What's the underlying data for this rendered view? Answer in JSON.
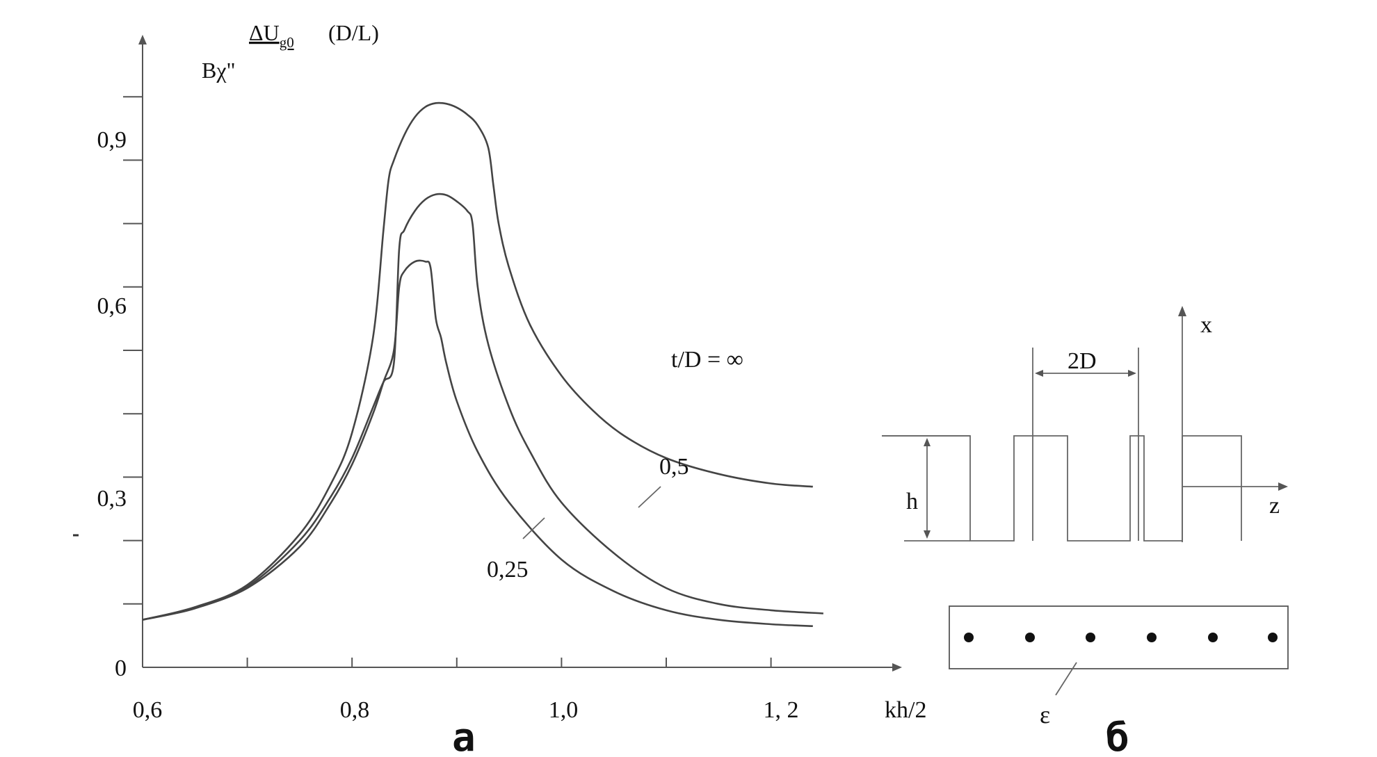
{
  "chart_data": {
    "type": "line",
    "ylabel_prefix": "Bχ\"",
    "ylabel_main": "ΔU",
    "ylabel_sub": "g0",
    "ylabel_suffix": "(D/L)",
    "xlabel": "kh/2",
    "x_ticks": [
      "0,6",
      "0,8",
      "1,0",
      "1, 2"
    ],
    "y_ticks": [
      "0",
      "0,3",
      "0,6",
      "0,9"
    ],
    "xlim": [
      0.6,
      1.3
    ],
    "ylim": [
      0,
      0.97
    ],
    "series": [
      {
        "name": "t/D = ∞",
        "x": [
          0.6,
          0.65,
          0.7,
          0.75,
          0.78,
          0.8,
          0.82,
          0.83,
          0.835,
          0.84,
          0.85,
          0.86,
          0.87,
          0.88,
          0.89,
          0.9,
          0.91,
          0.92,
          0.93,
          0.935,
          0.94,
          0.95,
          0.97,
          1.0,
          1.03,
          1.06,
          1.1,
          1.15,
          1.2,
          1.24
        ],
        "y": [
          0.075,
          0.095,
          0.13,
          0.21,
          0.29,
          0.37,
          0.52,
          0.69,
          0.77,
          0.8,
          0.84,
          0.868,
          0.884,
          0.89,
          0.889,
          0.883,
          0.872,
          0.855,
          0.82,
          0.76,
          0.7,
          0.63,
          0.54,
          0.46,
          0.405,
          0.365,
          0.33,
          0.305,
          0.29,
          0.285
        ]
      },
      {
        "name": "0,5",
        "x": [
          0.6,
          0.65,
          0.7,
          0.75,
          0.78,
          0.8,
          0.82,
          0.83,
          0.84,
          0.845,
          0.85,
          0.86,
          0.87,
          0.88,
          0.89,
          0.9,
          0.91,
          0.915,
          0.92,
          0.93,
          0.95,
          0.97,
          1.0,
          1.05,
          1.1,
          1.15,
          1.2,
          1.25
        ],
        "y": [
          0.075,
          0.093,
          0.127,
          0.2,
          0.27,
          0.33,
          0.41,
          0.45,
          0.48,
          0.66,
          0.69,
          0.72,
          0.738,
          0.746,
          0.745,
          0.735,
          0.72,
          0.7,
          0.6,
          0.51,
          0.41,
          0.34,
          0.26,
          0.18,
          0.125,
          0.1,
          0.09,
          0.085
        ]
      },
      {
        "name": "0,25",
        "x": [
          0.6,
          0.65,
          0.7,
          0.75,
          0.78,
          0.8,
          0.82,
          0.83,
          0.84,
          0.845,
          0.85,
          0.86,
          0.87,
          0.875,
          0.88,
          0.885,
          0.89,
          0.9,
          0.92,
          0.95,
          1.0,
          1.05,
          1.1,
          1.15,
          1.2,
          1.24
        ],
        "y": [
          0.075,
          0.094,
          0.125,
          0.19,
          0.26,
          0.32,
          0.4,
          0.45,
          0.5,
          0.6,
          0.625,
          0.64,
          0.64,
          0.63,
          0.55,
          0.52,
          0.48,
          0.42,
          0.34,
          0.26,
          0.17,
          0.12,
          0.09,
          0.075,
          0.068,
          0.065
        ]
      }
    ]
  },
  "schematic": {
    "axis_x_label": "x",
    "axis_z_label": "z",
    "width_label": "2D",
    "height_label": "h",
    "layer_label": "ε"
  },
  "panels": {
    "left": "а",
    "right": "б"
  },
  "colors": {
    "curve": "#444444",
    "axis": "#555555",
    "text": "#111111"
  }
}
